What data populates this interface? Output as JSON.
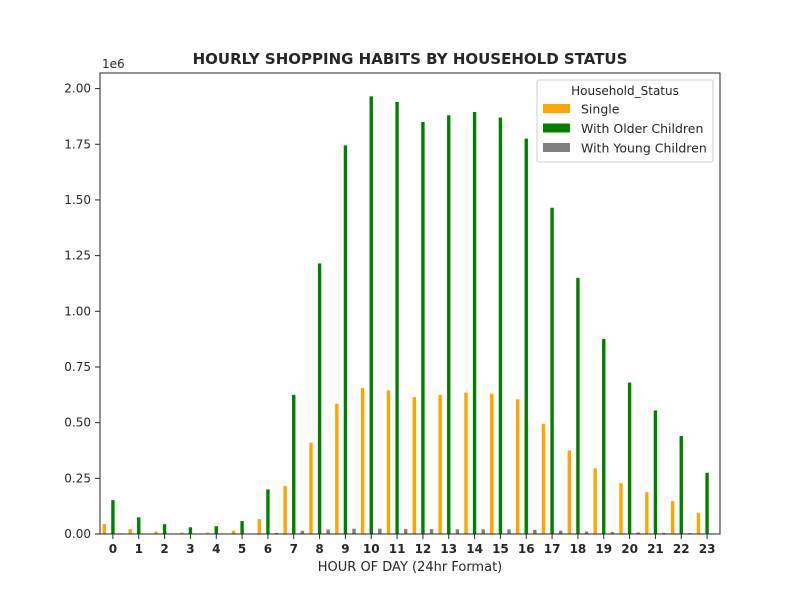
{
  "chart_data": {
    "type": "bar",
    "title": "HOURLY SHOPPING HABITS BY HOUSEHOLD STATUS",
    "xlabel": "HOUR OF DAY (24hr Format)",
    "ylabel": "",
    "y_offset_label": "1e6",
    "ylim": [
      0,
      2.07
    ],
    "yticks": [
      "0.00",
      "0.25",
      "0.50",
      "0.75",
      "1.00",
      "1.25",
      "1.50",
      "1.75",
      "2.00"
    ],
    "grid": false,
    "legend_title": "Household_Status",
    "legend_position": "top-right",
    "categories": [
      "0",
      "1",
      "2",
      "3",
      "4",
      "5",
      "6",
      "7",
      "8",
      "9",
      "10",
      "11",
      "12",
      "13",
      "14",
      "15",
      "16",
      "17",
      "18",
      "19",
      "20",
      "21",
      "22",
      "23"
    ],
    "series": [
      {
        "name": "Single",
        "color": "#ffa500",
        "values": [
          0.045,
          0.022,
          0.011,
          0.006,
          0.006,
          0.015,
          0.067,
          0.215,
          0.41,
          0.585,
          0.655,
          0.645,
          0.615,
          0.625,
          0.635,
          0.63,
          0.605,
          0.495,
          0.375,
          0.295,
          0.228,
          0.188,
          0.148,
          0.095
        ]
      },
      {
        "name": "With Older Children",
        "color": "#008000",
        "values": [
          0.152,
          0.075,
          0.044,
          0.03,
          0.035,
          0.058,
          0.2,
          0.625,
          1.215,
          1.745,
          1.965,
          1.94,
          1.85,
          1.88,
          1.895,
          1.87,
          1.775,
          1.465,
          1.15,
          0.875,
          0.68,
          0.555,
          0.44,
          0.275
        ]
      },
      {
        "name": "With Young Children",
        "color": "#808080",
        "values": [
          0.003,
          0.002,
          0.001,
          0.001,
          0.001,
          0.002,
          0.005,
          0.014,
          0.02,
          0.024,
          0.024,
          0.022,
          0.022,
          0.021,
          0.021,
          0.021,
          0.019,
          0.015,
          0.011,
          0.009,
          0.007,
          0.005,
          0.004,
          0.002
        ]
      }
    ]
  }
}
